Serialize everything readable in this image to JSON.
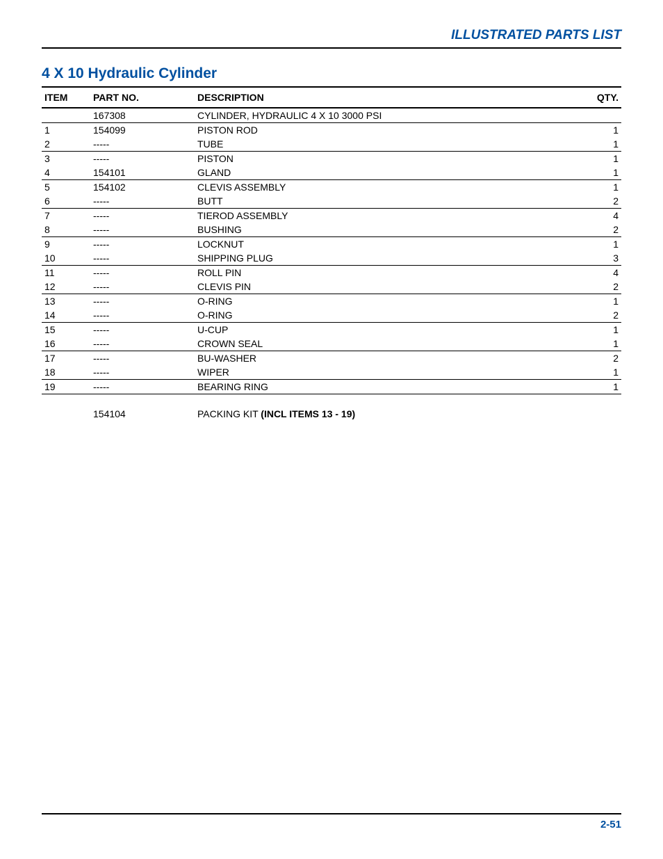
{
  "header": {
    "section_label": "ILLUSTRATED PARTS LIST"
  },
  "title": "4 X 10 Hydraulic Cylinder",
  "table": {
    "columns": {
      "item": "ITEM",
      "partno": "PART NO.",
      "description": "DESCRIPTION",
      "qty": "QTY."
    },
    "rows": [
      {
        "item": "",
        "partno": "167308",
        "description": "CYLINDER, HYDRAULIC 4 X 10 3000 PSI",
        "qty": "",
        "top_border": false
      },
      {
        "item": "1",
        "partno": "154099",
        "description": "PISTON ROD",
        "qty": "1",
        "top_border": true
      },
      {
        "item": "2",
        "partno": "-----",
        "description": "TUBE",
        "qty": "1",
        "top_border": false
      },
      {
        "item": "3",
        "partno": "-----",
        "description": "PISTON",
        "qty": "1",
        "top_border": true
      },
      {
        "item": "4",
        "partno": "154101",
        "description": "GLAND",
        "qty": "1",
        "top_border": false
      },
      {
        "item": "5",
        "partno": "154102",
        "description": "CLEVIS ASSEMBLY",
        "qty": "1",
        "top_border": true
      },
      {
        "item": "6",
        "partno": "-----",
        "description": "BUTT",
        "qty": "2",
        "top_border": false
      },
      {
        "item": "7",
        "partno": "-----",
        "description": "TIEROD ASSEMBLY",
        "qty": "4",
        "top_border": true
      },
      {
        "item": "8",
        "partno": "-----",
        "description": "BUSHING",
        "qty": "2",
        "top_border": false
      },
      {
        "item": "9",
        "partno": "-----",
        "description": "LOCKNUT",
        "qty": "1",
        "top_border": true
      },
      {
        "item": "10",
        "partno": "-----",
        "description": "SHIPPING PLUG",
        "qty": "3",
        "top_border": false
      },
      {
        "item": "11",
        "partno": "-----",
        "description": "ROLL PIN",
        "qty": "4",
        "top_border": true
      },
      {
        "item": "12",
        "partno": "-----",
        "description": "CLEVIS PIN",
        "qty": "2",
        "top_border": false
      },
      {
        "item": "13",
        "partno": "-----",
        "description": "O-RING",
        "qty": "1",
        "top_border": true
      },
      {
        "item": "14",
        "partno": "-----",
        "description": "O-RING",
        "qty": "2",
        "top_border": false
      },
      {
        "item": "15",
        "partno": "-----",
        "description": "U-CUP",
        "qty": "1",
        "top_border": true
      },
      {
        "item": "16",
        "partno": "-----",
        "description": "CROWN SEAL",
        "qty": "1",
        "top_border": false
      },
      {
        "item": "17",
        "partno": "-----",
        "description": "BU-WASHER",
        "qty": "2",
        "top_border": true
      },
      {
        "item": "18",
        "partno": "-----",
        "description": "WIPER",
        "qty": "1",
        "top_border": false
      },
      {
        "item": "19",
        "partno": "-----",
        "description": "BEARING RING",
        "qty": "1",
        "top_border": true
      }
    ]
  },
  "footnote": {
    "partno": "154104",
    "description_prefix": "PACKING KIT ",
    "description_bold": "(INCL ITEMS 13 - 19)"
  },
  "footer": {
    "page_label": "2-51"
  },
  "styles": {
    "header_color": "#0050a0",
    "title_color": "#0050a0",
    "footer_color": "#0050a0",
    "border_color": "#000000",
    "background": "#ffffff",
    "font_family": "Arial, Helvetica, sans-serif",
    "header_fontsize": 19,
    "title_fontsize": 21,
    "table_fontsize": 14,
    "footer_fontsize": 15
  }
}
